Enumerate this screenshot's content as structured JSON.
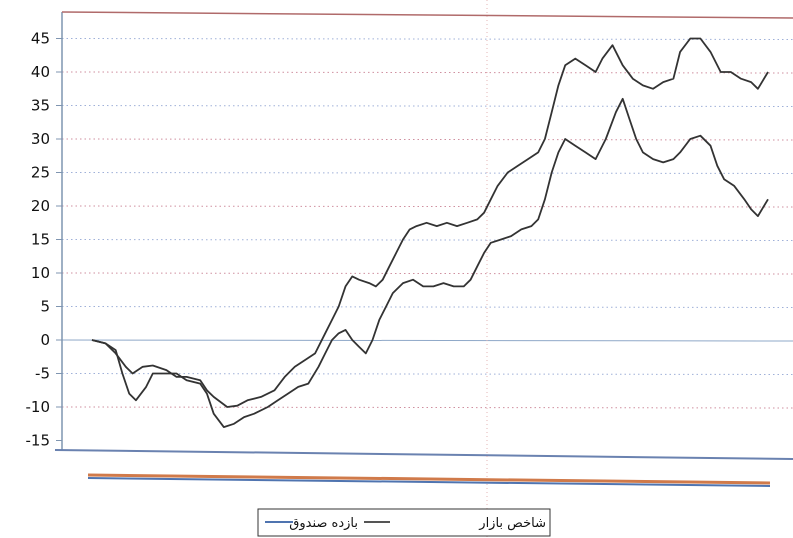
{
  "chart_data": {
    "type": "line",
    "title": "",
    "xlabel": "",
    "ylabel": "",
    "ylim": [
      -15,
      47
    ],
    "yticks": [
      45,
      40,
      35,
      30,
      25,
      20,
      15,
      10,
      5,
      0,
      -5,
      -10,
      -15
    ],
    "grid": true,
    "legend_position": "bottom",
    "legend": [
      "شاخص بازار",
      "بازده صندوق"
    ],
    "series": [
      {
        "name": "بازده صندوق",
        "color": "#333333",
        "values": [
          [
            0,
            0
          ],
          [
            0.02,
            -0.5
          ],
          [
            0.035,
            -2
          ],
          [
            0.05,
            -4
          ],
          [
            0.06,
            -5
          ],
          [
            0.075,
            -4
          ],
          [
            0.09,
            -3.8
          ],
          [
            0.11,
            -4.5
          ],
          [
            0.125,
            -5.5
          ],
          [
            0.14,
            -5.5
          ],
          [
            0.16,
            -6
          ],
          [
            0.17,
            -7.5
          ],
          [
            0.18,
            -8.5
          ],
          [
            0.2,
            -10
          ],
          [
            0.215,
            -9.8
          ],
          [
            0.23,
            -9
          ],
          [
            0.25,
            -8.5
          ],
          [
            0.27,
            -7.5
          ],
          [
            0.285,
            -5.5
          ],
          [
            0.3,
            -4
          ],
          [
            0.315,
            -3
          ],
          [
            0.33,
            -2
          ],
          [
            0.345,
            1
          ],
          [
            0.355,
            3
          ],
          [
            0.365,
            5
          ],
          [
            0.375,
            8
          ],
          [
            0.385,
            9.5
          ],
          [
            0.395,
            9
          ],
          [
            0.41,
            8.5
          ],
          [
            0.42,
            8
          ],
          [
            0.43,
            9
          ],
          [
            0.44,
            11
          ],
          [
            0.45,
            13
          ],
          [
            0.46,
            15
          ],
          [
            0.47,
            16.5
          ],
          [
            0.48,
            17
          ],
          [
            0.495,
            17.5
          ],
          [
            0.51,
            17
          ],
          [
            0.525,
            17.5
          ],
          [
            0.54,
            17
          ],
          [
            0.555,
            17.5
          ],
          [
            0.57,
            18
          ],
          [
            0.58,
            19
          ],
          [
            0.59,
            21
          ],
          [
            0.6,
            23
          ],
          [
            0.615,
            25
          ],
          [
            0.63,
            26
          ],
          [
            0.645,
            27
          ],
          [
            0.66,
            28
          ],
          [
            0.67,
            30
          ],
          [
            0.68,
            34
          ],
          [
            0.69,
            38
          ],
          [
            0.7,
            41
          ],
          [
            0.715,
            42
          ],
          [
            0.73,
            41
          ],
          [
            0.745,
            40
          ],
          [
            0.755,
            42
          ],
          [
            0.77,
            44
          ],
          [
            0.785,
            41
          ],
          [
            0.8,
            39
          ],
          [
            0.815,
            38
          ],
          [
            0.83,
            37.5
          ],
          [
            0.845,
            38.5
          ],
          [
            0.86,
            39
          ],
          [
            0.87,
            43
          ],
          [
            0.885,
            45
          ],
          [
            0.9,
            45
          ],
          [
            0.915,
            43
          ],
          [
            0.93,
            40
          ],
          [
            0.945,
            40
          ],
          [
            0.96,
            39
          ],
          [
            0.975,
            38.5
          ],
          [
            0.985,
            37.5
          ],
          [
            1.0,
            40
          ]
        ]
      },
      {
        "name": "شاخص بازار",
        "color": "#333333",
        "values": [
          [
            0,
            0
          ],
          [
            0.02,
            -0.5
          ],
          [
            0.035,
            -1.5
          ],
          [
            0.045,
            -5
          ],
          [
            0.055,
            -8
          ],
          [
            0.065,
            -9
          ],
          [
            0.08,
            -7
          ],
          [
            0.09,
            -5
          ],
          [
            0.11,
            -5
          ],
          [
            0.125,
            -5
          ],
          [
            0.14,
            -6
          ],
          [
            0.16,
            -6.5
          ],
          [
            0.17,
            -8
          ],
          [
            0.18,
            -11
          ],
          [
            0.195,
            -13
          ],
          [
            0.21,
            -12.5
          ],
          [
            0.225,
            -11.5
          ],
          [
            0.24,
            -11
          ],
          [
            0.26,
            -10
          ],
          [
            0.275,
            -9
          ],
          [
            0.29,
            -8
          ],
          [
            0.305,
            -7
          ],
          [
            0.32,
            -6.5
          ],
          [
            0.335,
            -4
          ],
          [
            0.345,
            -2
          ],
          [
            0.355,
            0
          ],
          [
            0.365,
            1
          ],
          [
            0.375,
            1.5
          ],
          [
            0.385,
            0
          ],
          [
            0.395,
            -1
          ],
          [
            0.405,
            -2
          ],
          [
            0.415,
            0
          ],
          [
            0.425,
            3
          ],
          [
            0.435,
            5
          ],
          [
            0.445,
            7
          ],
          [
            0.46,
            8.5
          ],
          [
            0.475,
            9
          ],
          [
            0.49,
            8
          ],
          [
            0.505,
            8
          ],
          [
            0.52,
            8.5
          ],
          [
            0.535,
            8
          ],
          [
            0.55,
            8
          ],
          [
            0.56,
            9
          ],
          [
            0.57,
            11
          ],
          [
            0.58,
            13
          ],
          [
            0.59,
            14.5
          ],
          [
            0.605,
            15
          ],
          [
            0.62,
            15.5
          ],
          [
            0.635,
            16.5
          ],
          [
            0.65,
            17
          ],
          [
            0.66,
            18
          ],
          [
            0.67,
            21
          ],
          [
            0.68,
            25
          ],
          [
            0.69,
            28
          ],
          [
            0.7,
            30
          ],
          [
            0.715,
            29
          ],
          [
            0.73,
            28
          ],
          [
            0.745,
            27
          ],
          [
            0.76,
            30
          ],
          [
            0.775,
            34
          ],
          [
            0.785,
            36
          ],
          [
            0.795,
            33
          ],
          [
            0.805,
            30
          ],
          [
            0.815,
            28
          ],
          [
            0.83,
            27
          ],
          [
            0.845,
            26.5
          ],
          [
            0.86,
            27
          ],
          [
            0.87,
            28
          ],
          [
            0.885,
            30
          ],
          [
            0.9,
            30.5
          ],
          [
            0.915,
            29
          ],
          [
            0.925,
            26
          ],
          [
            0.935,
            24
          ],
          [
            0.95,
            23
          ],
          [
            0.965,
            21
          ],
          [
            0.975,
            19.5
          ],
          [
            0.985,
            18.5
          ],
          [
            1.0,
            21
          ]
        ]
      }
    ]
  }
}
